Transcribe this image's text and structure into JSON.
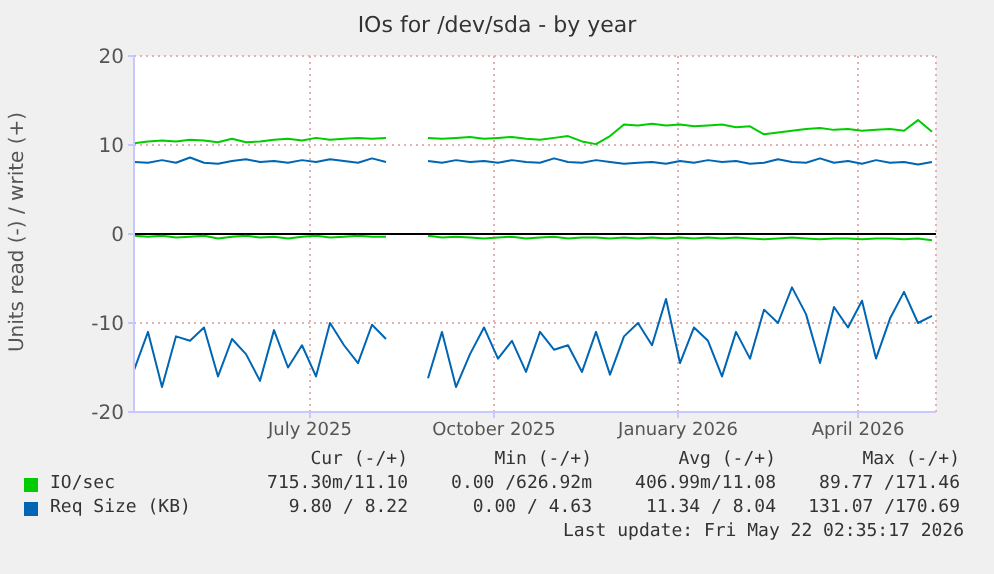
{
  "chart_data": {
    "type": "line",
    "title": "IOs for /dev/sda - by year",
    "ylabel": "Units read (-) / write (+)",
    "x": [
      "2025-04-04",
      "2025-04-11",
      "2025-04-18",
      "2025-04-25",
      "2025-05-02",
      "2025-05-09",
      "2025-05-16",
      "2025-05-23",
      "2025-05-30",
      "2025-06-06",
      "2025-06-13",
      "2025-06-20",
      "2025-06-27",
      "2025-07-04",
      "2025-07-11",
      "2025-07-18",
      "2025-07-25",
      "2025-08-01",
      "2025-08-08",
      "2025-08-15",
      "2025-08-22",
      "2025-08-29",
      "2025-09-05",
      "2025-09-12",
      "2025-09-19",
      "2025-09-26",
      "2025-10-03",
      "2025-10-10",
      "2025-10-17",
      "2025-10-24",
      "2025-10-31",
      "2025-11-07",
      "2025-11-14",
      "2025-11-21",
      "2025-11-28",
      "2025-12-05",
      "2025-12-12",
      "2025-12-19",
      "2025-12-26",
      "2026-01-02",
      "2026-01-09",
      "2026-01-16",
      "2026-01-23",
      "2026-01-30",
      "2026-02-06",
      "2026-02-13",
      "2026-02-20",
      "2026-02-27",
      "2026-03-06",
      "2026-03-13",
      "2026-03-20",
      "2026-03-27",
      "2026-04-03",
      "2026-04-10",
      "2026-04-17",
      "2026-04-24",
      "2026-05-01",
      "2026-05-08"
    ],
    "series": [
      {
        "name": "IO/sec",
        "color": "#00cc00",
        "values": [
          10.2,
          10.4,
          10.5,
          10.4,
          10.6,
          10.5,
          10.3,
          10.7,
          10.3,
          10.4,
          10.6,
          10.7,
          10.5,
          10.8,
          10.6,
          10.7,
          10.8,
          10.7,
          10.8,
          null,
          null,
          10.8,
          10.7,
          10.8,
          10.9,
          10.7,
          10.8,
          10.9,
          10.7,
          10.6,
          10.8,
          11.0,
          10.4,
          10.1,
          11.0,
          12.3,
          12.2,
          12.4,
          12.2,
          12.3,
          12.1,
          12.2,
          12.3,
          12.0,
          12.1,
          11.2,
          11.4,
          11.6,
          11.8,
          11.9,
          11.7,
          11.8,
          11.6,
          11.7,
          11.8,
          11.6,
          12.8,
          11.5
        ]
      },
      {
        "name": "Req Size (KB)",
        "color": "#0066b3",
        "values": [
          8.1,
          8.0,
          8.3,
          8.0,
          8.6,
          8.0,
          7.9,
          8.2,
          8.4,
          8.1,
          8.2,
          8.0,
          8.3,
          8.1,
          8.4,
          8.2,
          8.0,
          8.5,
          8.1,
          null,
          null,
          8.2,
          8.0,
          8.3,
          8.1,
          8.2,
          8.0,
          8.3,
          8.1,
          8.0,
          8.5,
          8.1,
          8.0,
          8.3,
          8.1,
          7.9,
          8.0,
          8.1,
          7.9,
          8.2,
          8.0,
          8.3,
          8.1,
          8.2,
          7.9,
          8.0,
          8.4,
          8.1,
          8.0,
          8.5,
          8.0,
          8.2,
          7.9,
          8.3,
          8.0,
          8.1,
          7.8,
          8.1
        ]
      },
      {
        "color": "#00cc00",
        "values": [
          -0.2,
          -0.3,
          -0.2,
          -0.4,
          -0.3,
          -0.2,
          -0.5,
          -0.3,
          -0.2,
          -0.4,
          -0.3,
          -0.5,
          -0.3,
          -0.2,
          -0.4,
          -0.3,
          -0.2,
          -0.3,
          -0.3,
          null,
          null,
          -0.2,
          -0.4,
          -0.3,
          -0.4,
          -0.5,
          -0.4,
          -0.3,
          -0.5,
          -0.4,
          -0.3,
          -0.5,
          -0.4,
          -0.4,
          -0.5,
          -0.4,
          -0.5,
          -0.4,
          -0.5,
          -0.4,
          -0.5,
          -0.4,
          -0.5,
          -0.4,
          -0.5,
          -0.6,
          -0.5,
          -0.4,
          -0.5,
          -0.6,
          -0.5,
          -0.5,
          -0.6,
          -0.5,
          -0.5,
          -0.6,
          -0.5,
          -0.7
        ]
      },
      {
        "color": "#0066b3",
        "values": [
          -15.3,
          -11.0,
          -17.2,
          -11.5,
          -12.0,
          -10.5,
          -16.0,
          -11.8,
          -13.5,
          -16.5,
          -10.8,
          -15.0,
          -12.5,
          -16.0,
          -10.0,
          -12.5,
          -14.5,
          -10.2,
          -11.8,
          null,
          null,
          -16.2,
          -11.0,
          -17.2,
          -13.5,
          -10.5,
          -14.0,
          -12.0,
          -15.5,
          -11.0,
          -13.0,
          -12.5,
          -15.5,
          -11.0,
          -15.8,
          -11.5,
          -10.0,
          -12.5,
          -7.3,
          -14.5,
          -10.5,
          -12.0,
          -16.0,
          -11.0,
          -14.0,
          -8.5,
          -10.0,
          -6.0,
          -9.0,
          -14.5,
          -8.2,
          -10.5,
          -7.5,
          -14.0,
          -9.5,
          -6.5,
          -10.0,
          -9.2
        ]
      }
    ],
    "xlim": [
      "2025-04-04",
      "2026-05-10"
    ],
    "xticks": [
      {
        "value": "2025-07-01",
        "label": "July 2025"
      },
      {
        "value": "2025-10-01",
        "label": "October 2025"
      },
      {
        "value": "2026-01-01",
        "label": "January 2026"
      },
      {
        "value": "2026-04-01",
        "label": "April 2026"
      }
    ],
    "ylim": [
      -20,
      20
    ],
    "yticks": [
      -20,
      -10,
      0,
      10,
      20
    ],
    "ref_lines": [
      {
        "axis": "y",
        "value": 0,
        "color": "#000000"
      }
    ],
    "grid": true,
    "legend": "bottom",
    "marker": "none",
    "line_style": "solid",
    "annotations": [
      "Cur (-/+)",
      "Min (-/+)",
      "Avg (-/+)",
      "Max (-/+)",
      "715.30m/11.10",
      "0.00 /626.92m",
      "406.99m/11.08",
      "89.77 /171.46",
      "9.80 / 8.22",
      "0.00 / 4.63",
      "11.34 / 8.04",
      "131.07 /170.69",
      "Last update: Fri May 22 02:35:17 2026"
    ]
  }
}
